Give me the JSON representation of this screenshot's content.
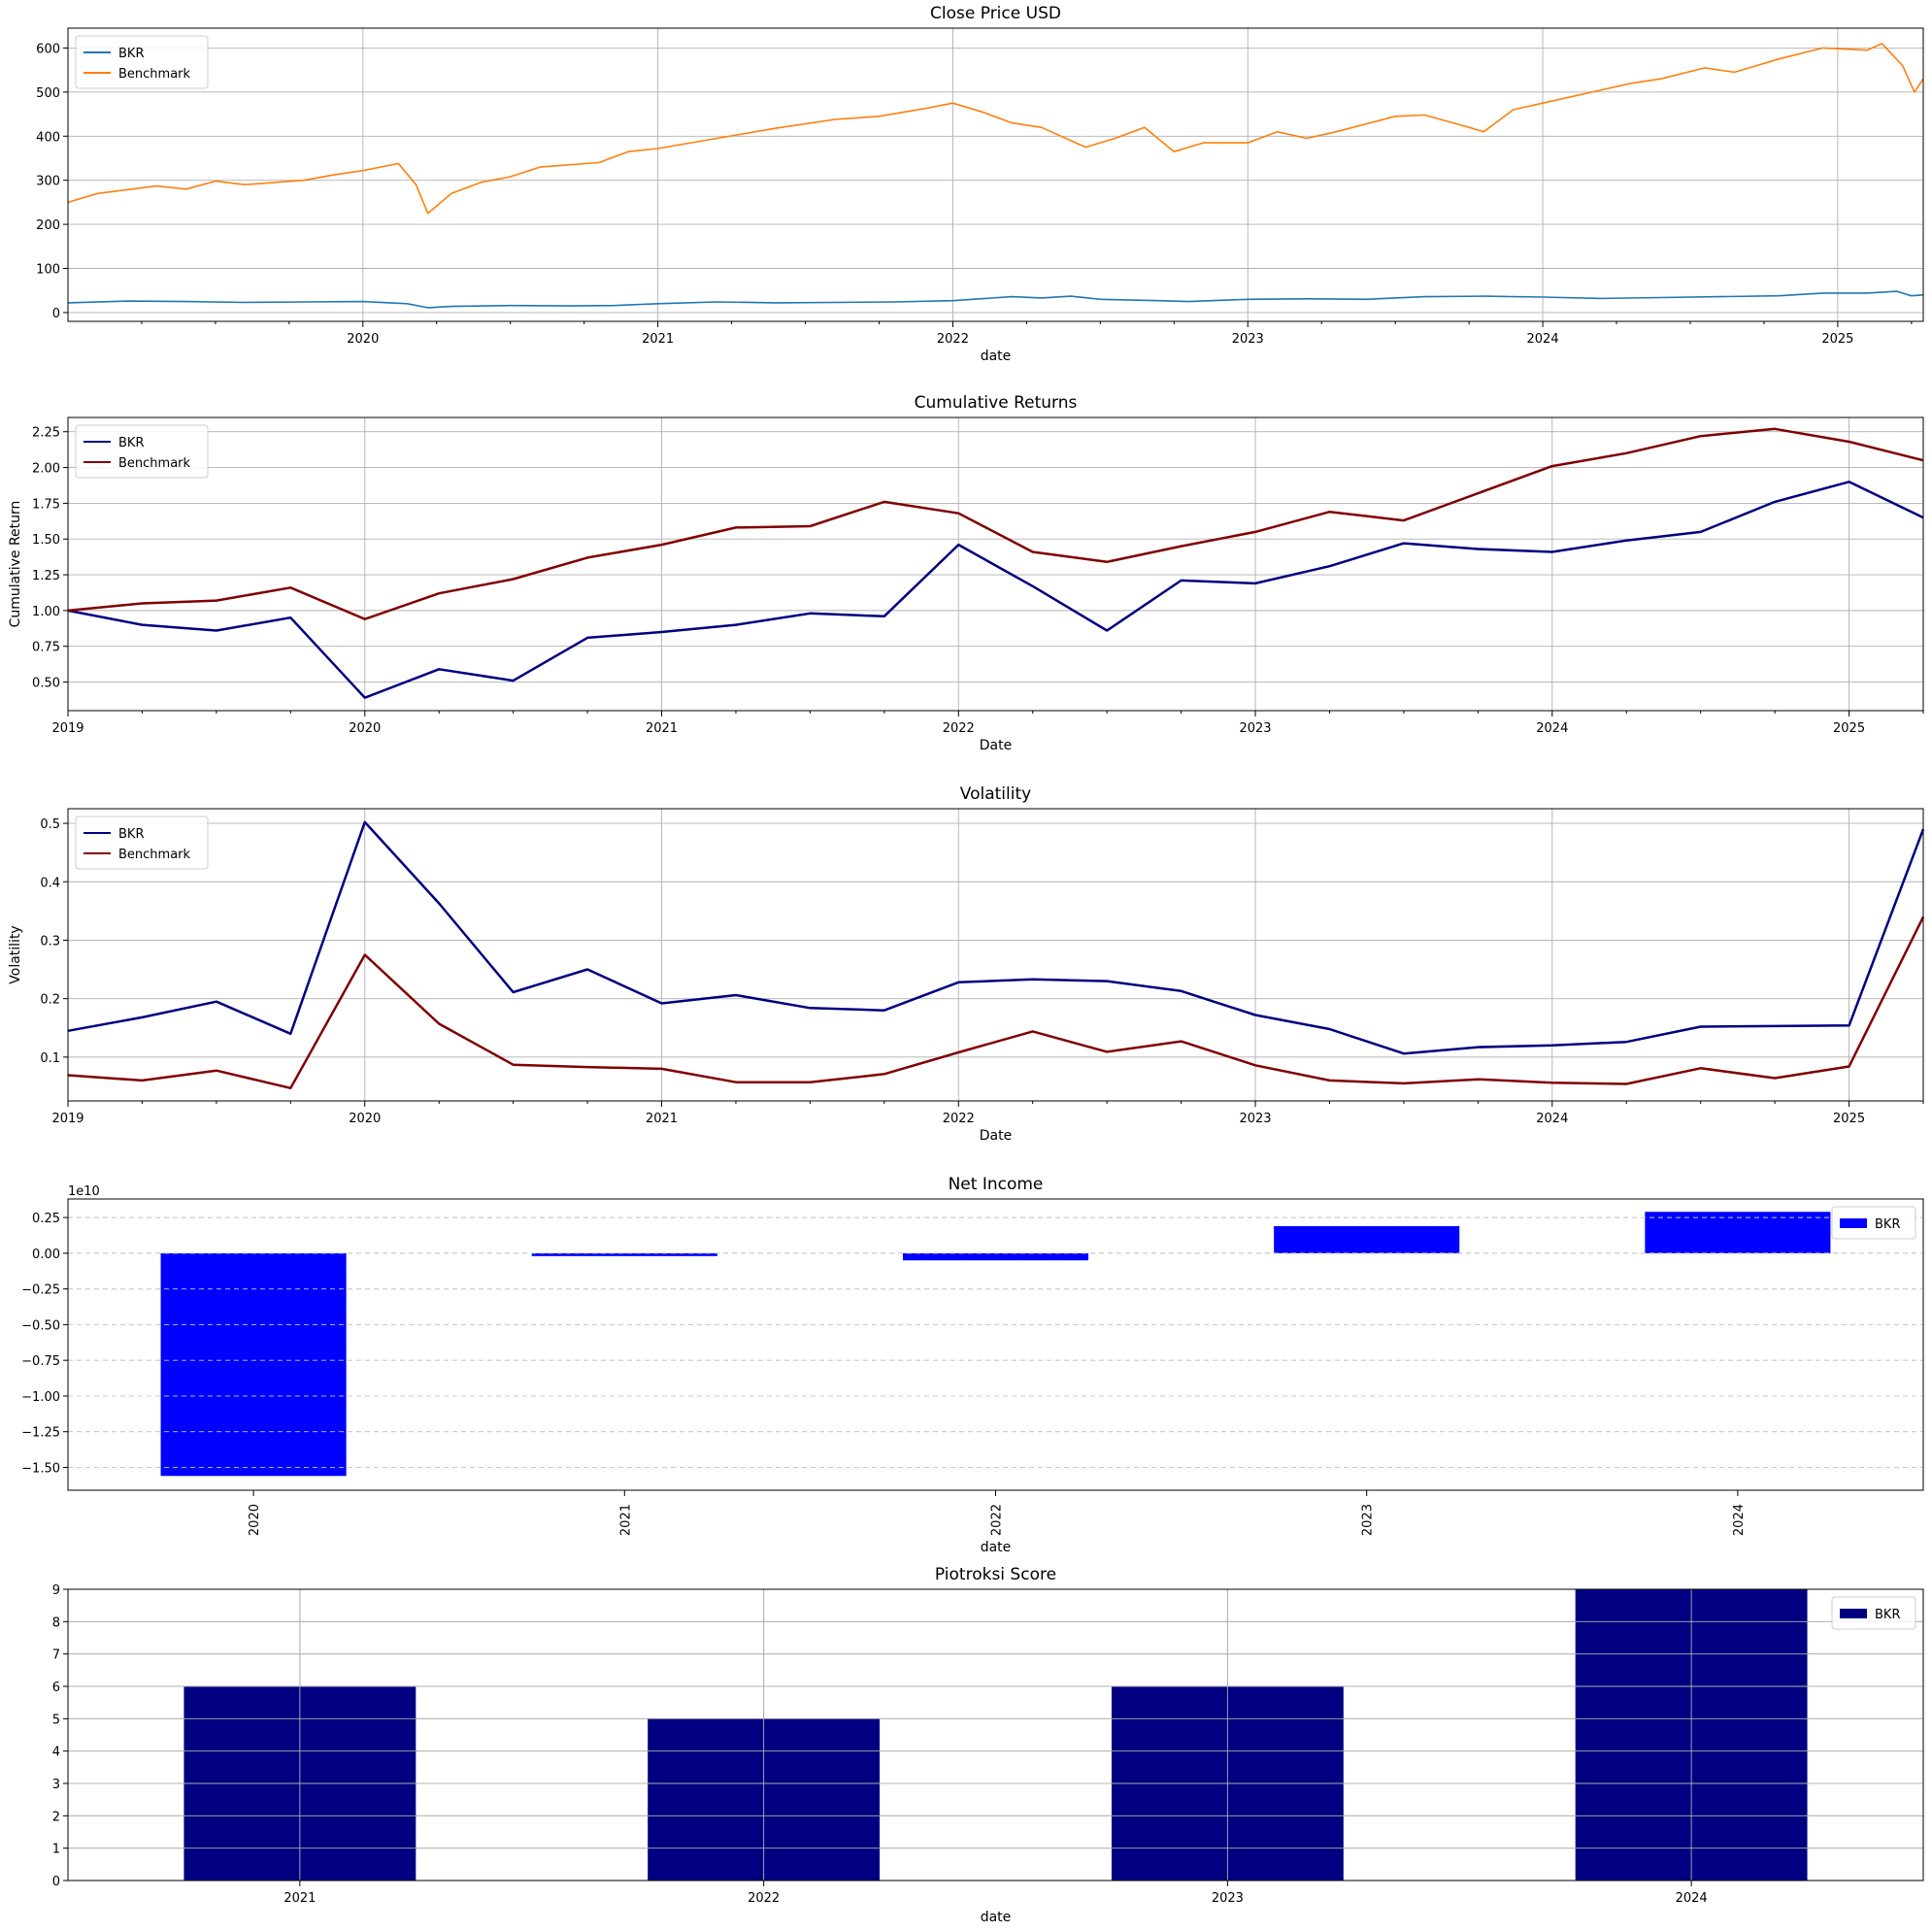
{
  "colors": {
    "bkr_price": "#1f77b4",
    "benchmark_price": "#ff7f0e",
    "bkr": "#000080",
    "benchmark": "#800000",
    "net_income": "#0000ff",
    "piotroski": "#000080"
  },
  "chart_data": [
    {
      "id": "close",
      "type": "line",
      "title": "Close Price USD",
      "xlabel": "date",
      "ylabel": "",
      "xlim": [
        2019.0,
        2025.29
      ],
      "ylim": [
        -20,
        645
      ],
      "yticks": [
        0,
        100,
        200,
        300,
        400,
        500,
        600
      ],
      "ytick_labels": [
        "0",
        "100",
        "200",
        "300",
        "400",
        "500",
        "600"
      ],
      "xticks": [
        2020,
        2021,
        2022,
        2023,
        2024,
        2025
      ],
      "xtick_labels": [
        "2020",
        "2021",
        "2022",
        "2023",
        "2024",
        "2025"
      ],
      "grid": true,
      "legend": "upper-left",
      "series": [
        {
          "name": "BKR",
          "points": [
            [
              2019.0,
              22
            ],
            [
              2019.2,
              26
            ],
            [
              2019.4,
              25
            ],
            [
              2019.6,
              23
            ],
            [
              2019.8,
              24
            ],
            [
              2020.0,
              25
            ],
            [
              2020.15,
              20
            ],
            [
              2020.22,
              11
            ],
            [
              2020.3,
              14
            ],
            [
              2020.5,
              16
            ],
            [
              2020.7,
              15
            ],
            [
              2020.85,
              16
            ],
            [
              2021.0,
              20
            ],
            [
              2021.2,
              24
            ],
            [
              2021.4,
              22
            ],
            [
              2021.6,
              23
            ],
            [
              2021.8,
              24
            ],
            [
              2022.0,
              27
            ],
            [
              2022.2,
              36
            ],
            [
              2022.3,
              33
            ],
            [
              2022.4,
              37
            ],
            [
              2022.5,
              30
            ],
            [
              2022.7,
              27
            ],
            [
              2022.8,
              25
            ],
            [
              2023.0,
              30
            ],
            [
              2023.2,
              31
            ],
            [
              2023.4,
              30
            ],
            [
              2023.6,
              36
            ],
            [
              2023.8,
              37
            ],
            [
              2024.0,
              35
            ],
            [
              2024.2,
              32
            ],
            [
              2024.4,
              34
            ],
            [
              2024.6,
              36
            ],
            [
              2024.8,
              38
            ],
            [
              2024.95,
              44
            ],
            [
              2025.1,
              44
            ],
            [
              2025.2,
              48
            ],
            [
              2025.25,
              38
            ],
            [
              2025.29,
              40
            ]
          ]
        },
        {
          "name": "Benchmark",
          "points": [
            [
              2019.0,
              250
            ],
            [
              2019.1,
              270
            ],
            [
              2019.3,
              287
            ],
            [
              2019.4,
              280
            ],
            [
              2019.5,
              298
            ],
            [
              2019.6,
              290
            ],
            [
              2019.8,
              300
            ],
            [
              2019.9,
              312
            ],
            [
              2020.0,
              322
            ],
            [
              2020.12,
              338
            ],
            [
              2020.18,
              290
            ],
            [
              2020.22,
              225
            ],
            [
              2020.3,
              270
            ],
            [
              2020.4,
              295
            ],
            [
              2020.5,
              308
            ],
            [
              2020.6,
              330
            ],
            [
              2020.8,
              340
            ],
            [
              2020.9,
              365
            ],
            [
              2021.0,
              372
            ],
            [
              2021.2,
              395
            ],
            [
              2021.4,
              418
            ],
            [
              2021.6,
              438
            ],
            [
              2021.75,
              445
            ],
            [
              2021.9,
              462
            ],
            [
              2022.0,
              475
            ],
            [
              2022.1,
              455
            ],
            [
              2022.2,
              430
            ],
            [
              2022.3,
              420
            ],
            [
              2022.45,
              375
            ],
            [
              2022.55,
              395
            ],
            [
              2022.65,
              420
            ],
            [
              2022.75,
              365
            ],
            [
              2022.85,
              385
            ],
            [
              2023.0,
              385
            ],
            [
              2023.1,
              410
            ],
            [
              2023.2,
              395
            ],
            [
              2023.3,
              410
            ],
            [
              2023.5,
              445
            ],
            [
              2023.6,
              448
            ],
            [
              2023.75,
              420
            ],
            [
              2023.8,
              410
            ],
            [
              2023.9,
              460
            ],
            [
              2024.0,
              475
            ],
            [
              2024.2,
              505
            ],
            [
              2024.3,
              520
            ],
            [
              2024.4,
              530
            ],
            [
              2024.55,
              555
            ],
            [
              2024.65,
              545
            ],
            [
              2024.8,
              575
            ],
            [
              2024.95,
              600
            ],
            [
              2025.1,
              595
            ],
            [
              2025.15,
              610
            ],
            [
              2025.22,
              560
            ],
            [
              2025.26,
              500
            ],
            [
              2025.29,
              530
            ]
          ]
        }
      ]
    },
    {
      "id": "cumret",
      "type": "line",
      "title": "Cumulative Returns",
      "xlabel": "Date",
      "ylabel": "Cumulative Return",
      "xlim": [
        2019.0,
        2025.25
      ],
      "ylim": [
        0.3,
        2.35
      ],
      "yticks": [
        0.5,
        0.75,
        1.0,
        1.25,
        1.5,
        1.75,
        2.0,
        2.25
      ],
      "ytick_labels": [
        "0.50",
        "0.75",
        "1.00",
        "1.25",
        "1.50",
        "1.75",
        "2.00",
        "2.25"
      ],
      "xticks": [
        2019,
        2020,
        2021,
        2022,
        2023,
        2024,
        2025
      ],
      "xtick_labels": [
        "2019",
        "2020",
        "2021",
        "2022",
        "2023",
        "2024",
        "2025"
      ],
      "grid": true,
      "legend": "upper-left",
      "x": [
        2019.0,
        2019.25,
        2019.5,
        2019.75,
        2020.0,
        2020.25,
        2020.5,
        2020.75,
        2021.0,
        2021.25,
        2021.5,
        2021.75,
        2022.0,
        2022.25,
        2022.5,
        2022.75,
        2023.0,
        2023.25,
        2023.5,
        2023.75,
        2024.0,
        2024.25,
        2024.5,
        2024.75,
        2025.0,
        2025.25
      ],
      "series": [
        {
          "name": "BKR",
          "values": [
            1.0,
            0.9,
            0.86,
            0.95,
            0.39,
            0.59,
            0.51,
            0.81,
            0.85,
            0.9,
            0.98,
            0.96,
            1.46,
            1.17,
            0.86,
            1.21,
            1.19,
            1.31,
            1.47,
            1.43,
            1.41,
            1.49,
            1.55,
            1.76,
            1.9,
            1.65
          ]
        },
        {
          "name": "Benchmark",
          "values": [
            1.0,
            1.05,
            1.07,
            1.16,
            0.94,
            1.12,
            1.22,
            1.37,
            1.46,
            1.58,
            1.59,
            1.76,
            1.68,
            1.41,
            1.34,
            1.45,
            1.55,
            1.69,
            1.63,
            1.82,
            2.01,
            2.1,
            2.22,
            2.27,
            2.18,
            2.05
          ]
        }
      ]
    },
    {
      "id": "vol",
      "type": "line",
      "title": "Volatility",
      "xlabel": "Date",
      "ylabel": "Volatility",
      "xlim": [
        2019.0,
        2025.25
      ],
      "ylim": [
        0.025,
        0.525
      ],
      "yticks": [
        0.1,
        0.2,
        0.3,
        0.4,
        0.5
      ],
      "ytick_labels": [
        "0.1",
        "0.2",
        "0.3",
        "0.4",
        "0.5"
      ],
      "xticks": [
        2019,
        2020,
        2021,
        2022,
        2023,
        2024,
        2025
      ],
      "xtick_labels": [
        "2019",
        "2020",
        "2021",
        "2022",
        "2023",
        "2024",
        "2025"
      ],
      "grid": true,
      "legend": "upper-left",
      "x": [
        2019.0,
        2019.25,
        2019.5,
        2019.75,
        2020.0,
        2020.25,
        2020.5,
        2020.75,
        2021.0,
        2021.25,
        2021.5,
        2021.75,
        2022.0,
        2022.25,
        2022.5,
        2022.75,
        2023.0,
        2023.25,
        2023.5,
        2023.75,
        2024.0,
        2024.25,
        2024.5,
        2024.75,
        2025.0,
        2025.25
      ],
      "series": [
        {
          "name": "BKR",
          "values": [
            0.145,
            0.168,
            0.195,
            0.14,
            0.502,
            0.363,
            0.211,
            0.25,
            0.192,
            0.206,
            0.184,
            0.18,
            0.228,
            0.233,
            0.23,
            0.213,
            0.172,
            0.148,
            0.106,
            0.117,
            0.12,
            0.126,
            0.152,
            0.153,
            0.154,
            0.49
          ]
        },
        {
          "name": "Benchmark",
          "values": [
            0.069,
            0.06,
            0.077,
            0.047,
            0.275,
            0.157,
            0.087,
            0.083,
            0.08,
            0.057,
            0.057,
            0.071,
            0.108,
            0.144,
            0.109,
            0.127,
            0.086,
            0.06,
            0.055,
            0.062,
            0.056,
            0.054,
            0.081,
            0.064,
            0.084,
            0.34
          ]
        }
      ]
    },
    {
      "id": "netincome",
      "type": "bar",
      "title": "Net Income",
      "xlabel": "date",
      "ylabel": "",
      "offset_text": "1e10",
      "categories": [
        "2020",
        "2021",
        "2022",
        "2023",
        "2024"
      ],
      "ylim": [
        -1.66,
        0.38
      ],
      "yticks": [
        -1.5,
        -1.25,
        -1.0,
        -0.75,
        -0.5,
        -0.25,
        0.0,
        0.25
      ],
      "ytick_labels": [
        "−1.50",
        "−1.25",
        "−1.00",
        "−0.75",
        "−0.50",
        "−0.25",
        "0.00",
        "0.25"
      ],
      "grid": "y-dashed",
      "legend": "upper-right",
      "series": [
        {
          "name": "BKR",
          "values": [
            -1.56,
            -0.02,
            -0.05,
            0.19,
            0.29
          ]
        }
      ]
    },
    {
      "id": "piotroski",
      "type": "bar",
      "title": "Piotroksi Score",
      "xlabel": "date",
      "ylabel": "",
      "categories": [
        "2021",
        "2022",
        "2023",
        "2024"
      ],
      "ylim": [
        0,
        9
      ],
      "yticks": [
        0,
        1,
        2,
        3,
        4,
        5,
        6,
        7,
        8,
        9
      ],
      "ytick_labels": [
        "0",
        "1",
        "2",
        "3",
        "4",
        "5",
        "6",
        "7",
        "8",
        "9"
      ],
      "grid": true,
      "legend": "upper-right",
      "series": [
        {
          "name": "BKR",
          "values": [
            6,
            5,
            6,
            9
          ]
        }
      ]
    }
  ]
}
